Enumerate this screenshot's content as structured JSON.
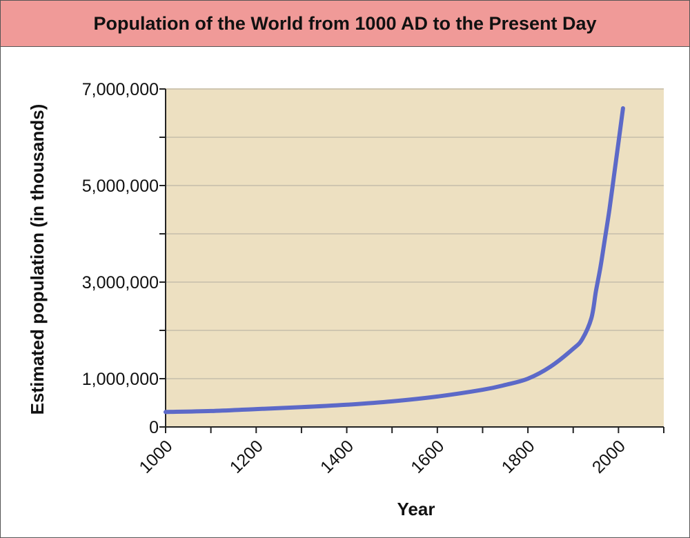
{
  "chart_data": {
    "type": "line",
    "title": "Population of the World from 1000 AD to the Present Day",
    "xlabel": "Year",
    "ylabel": "Estimated population (in thousands)",
    "xlim": [
      1000,
      2100
    ],
    "ylim": [
      0,
      7000000
    ],
    "x_ticks": [
      1000,
      1200,
      1400,
      1600,
      1800,
      2000
    ],
    "x_tick_labels": [
      "1000",
      "1200",
      "1400",
      "1600",
      "1800",
      "2000"
    ],
    "x_minor_step": 100,
    "y_ticks": [
      0,
      1000000,
      3000000,
      5000000,
      7000000
    ],
    "y_tick_labels": [
      "0",
      "1,000,000",
      "3,000,000",
      "5,000,000",
      "7,000,000"
    ],
    "y_minor_step": 1000000,
    "grid": true,
    "series": [
      {
        "x": [
          1000,
          1100,
          1200,
          1300,
          1400,
          1500,
          1600,
          1700,
          1750,
          1800,
          1850,
          1900,
          1920,
          1940,
          1950,
          1960,
          1970,
          1980,
          1990,
          2000,
          2010
        ],
        "values": [
          310000,
          330000,
          370000,
          410000,
          460000,
          530000,
          630000,
          770000,
          870000,
          1000000,
          1250000,
          1620000,
          1820000,
          2250000,
          2800000,
          3300000,
          3900000,
          4500000,
          5200000,
          5900000,
          6600000
        ]
      }
    ],
    "colors": {
      "plot_background": "#ede0c1",
      "line": "#5c69c8",
      "title_bar": "#f09a98"
    }
  }
}
